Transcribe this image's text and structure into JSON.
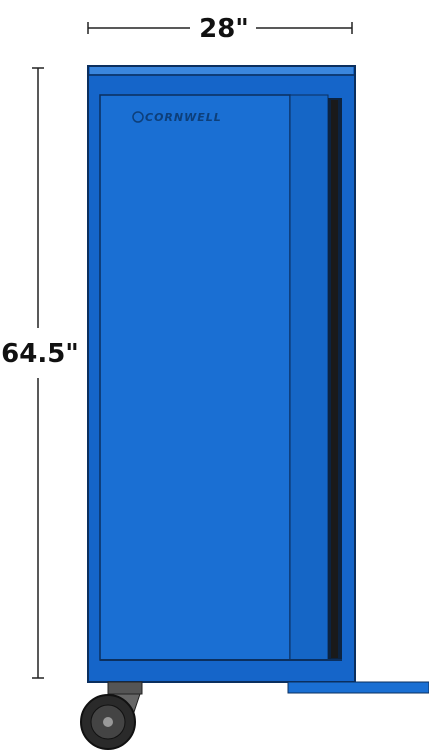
{
  "dimensions": {
    "width": "28\"",
    "height": "64.5\""
  },
  "brand": "CORNWELL"
}
